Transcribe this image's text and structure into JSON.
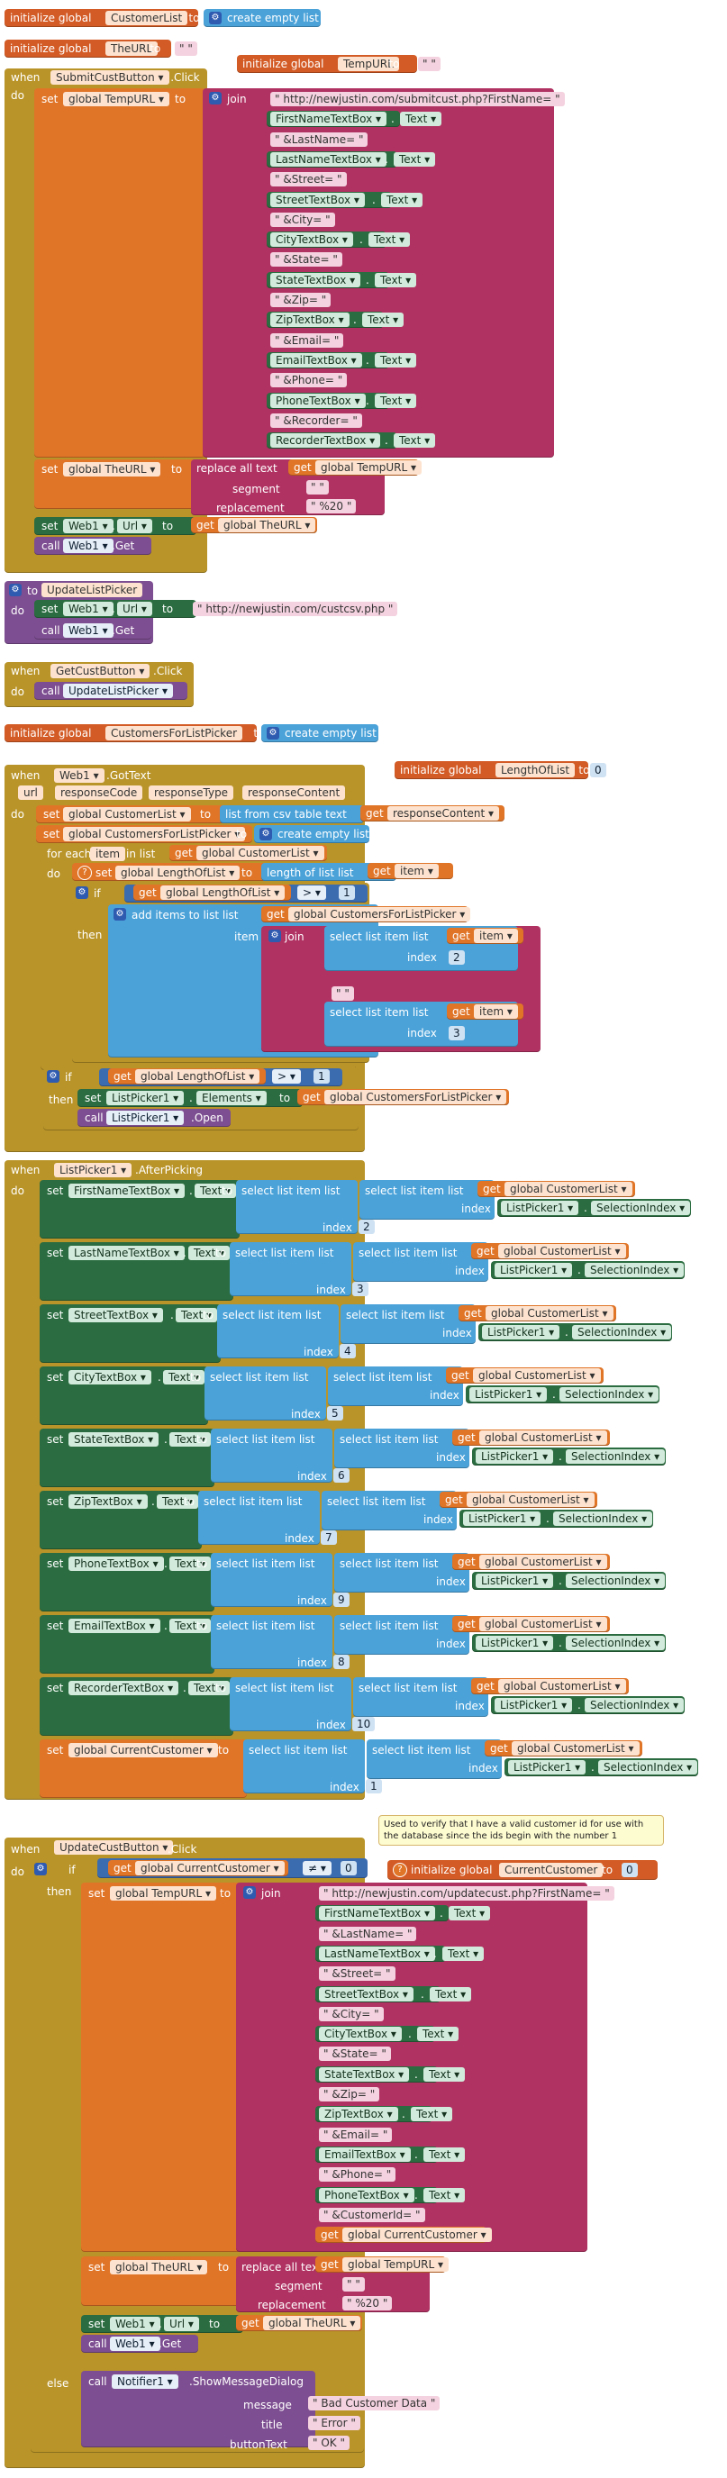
{
  "dropdown_arrow": "▾",
  "gear_glyph": "⚙",
  "question_glyph": "?",
  "empty_string": "\" \"",
  "kw": {
    "initialize_global": "initialize global",
    "to": "to",
    "when": "when",
    "do": "do",
    "set": "set",
    "call": "call",
    "get": "get",
    "join": "join",
    "if": "if",
    "then": "then",
    "else": "else",
    "for_each": "for each",
    "in_list": "in list",
    "item": "item",
    "list": "list",
    "index": "index",
    "text": "text",
    "segment": "segment",
    "replacement": "replacement",
    "replace_all_text": "replace all  text",
    "create_empty_list": "create empty list",
    "list_from_csv_table": "list from csv table  text",
    "length_of_list": "length of list  list",
    "add_items_to_list": "add items to list   list",
    "select_list_item": "select list item  list",
    "url": "url",
    "message": "message",
    "title": "title",
    "buttonText": "buttonText"
  },
  "globals": {
    "customer_list": "CustomerList",
    "the_url": "TheURL",
    "temp_url": "TempURL",
    "customers_for_list_picker": "CustomersForListPicker",
    "length_of_list": "LengthOfList",
    "current_customer": "CurrentCustomer"
  },
  "global_prefix": "global",
  "events": {
    "submit_click": {
      "component": "SubmitCustButton",
      "event": ".Click"
    },
    "get_click": {
      "component": "GetCustButton",
      "event": ".Click"
    },
    "web_got_text": {
      "component": "Web1",
      "event": ".GotText"
    },
    "after_picking": {
      "component": "ListPicker1",
      "event": ".AfterPicking"
    },
    "update_click": {
      "component": "UpdateCustButton",
      "event": ".Click"
    }
  },
  "procedure": {
    "name": "UpdateListPicker"
  },
  "got_text_params": [
    "url",
    "responseCode",
    "responseType",
    "responseContent"
  ],
  "for_each_var": "item",
  "urls": {
    "submit": "http://newjustin.com/submitcust.php?FirstName=",
    "list": "http://newjustin.com/custcsv.php",
    "update": "http://newjustin.com/updatecust.php?FirstName="
  },
  "submit_join_items": [
    {
      "kind": "text",
      "value": "http://newjustin.com/submitcust.php?FirstName="
    },
    {
      "kind": "comp",
      "value": "FirstNameTextBox",
      "prop": "Text"
    },
    {
      "kind": "text",
      "value": "&LastName="
    },
    {
      "kind": "comp",
      "value": "LastNameTextBox",
      "prop": "Text"
    },
    {
      "kind": "text",
      "value": "&Street="
    },
    {
      "kind": "comp",
      "value": "StreetTextBox",
      "prop": "Text"
    },
    {
      "kind": "text",
      "value": "&City="
    },
    {
      "kind": "comp",
      "value": "CityTextBox",
      "prop": "Text"
    },
    {
      "kind": "text",
      "value": "&State="
    },
    {
      "kind": "comp",
      "value": "StateTextBox",
      "prop": "Text"
    },
    {
      "kind": "text",
      "value": "&Zip="
    },
    {
      "kind": "comp",
      "value": "ZipTextBox",
      "prop": "Text"
    },
    {
      "kind": "text",
      "value": "&Email="
    },
    {
      "kind": "comp",
      "value": "EmailTextBox",
      "prop": "Text"
    },
    {
      "kind": "text",
      "value": "&Phone="
    },
    {
      "kind": "comp",
      "value": "PhoneTextBox",
      "prop": "Text"
    },
    {
      "kind": "text",
      "value": "&Recorder="
    },
    {
      "kind": "comp",
      "value": "RecorderTextBox",
      "prop": "Text"
    }
  ],
  "update_join_items": [
    {
      "kind": "text",
      "value": "http://newjustin.com/updatecust.php?FirstName="
    },
    {
      "kind": "comp",
      "value": "FirstNameTextBox",
      "prop": "Text"
    },
    {
      "kind": "text",
      "value": "&LastName="
    },
    {
      "kind": "comp",
      "value": "LastNameTextBox",
      "prop": "Text"
    },
    {
      "kind": "text",
      "value": "&Street="
    },
    {
      "kind": "comp",
      "value": "StreetTextBox",
      "prop": "Text"
    },
    {
      "kind": "text",
      "value": "&City="
    },
    {
      "kind": "comp",
      "value": "CityTextBox",
      "prop": "Text"
    },
    {
      "kind": "text",
      "value": "&State="
    },
    {
      "kind": "comp",
      "value": "StateTextBox",
      "prop": "Text"
    },
    {
      "kind": "text",
      "value": "&Zip="
    },
    {
      "kind": "comp",
      "value": "ZipTextBox",
      "prop": "Text"
    },
    {
      "kind": "text",
      "value": "&Email="
    },
    {
      "kind": "comp",
      "value": "EmailTextBox",
      "prop": "Text"
    },
    {
      "kind": "text",
      "value": "&Phone="
    },
    {
      "kind": "comp",
      "value": "PhoneTextBox",
      "prop": "Text"
    },
    {
      "kind": "text",
      "value": "&CustomerId="
    },
    {
      "kind": "var",
      "value": "global CurrentCustomer"
    }
  ],
  "components": {
    "web": "Web1",
    "url_prop": "Url",
    "get_method": ".Get",
    "open_method": ".Open",
    "list_picker": "ListPicker1",
    "elements_prop": "Elements",
    "selection_index": "SelectionIndex",
    "text_prop": "Text",
    "notifier": "Notifier1",
    "show_message_dialog": ".ShowMessageDialog"
  },
  "after_picking_sets": [
    {
      "component": "FirstNameTextBox",
      "index": "2"
    },
    {
      "component": "LastNameTextBox",
      "index": "3"
    },
    {
      "component": "StreetTextBox",
      "index": "4"
    },
    {
      "component": "CityTextBox",
      "index": "5"
    },
    {
      "component": "StateTextBox",
      "index": "6"
    },
    {
      "component": "ZipTextBox",
      "index": "7"
    },
    {
      "component": "PhoneTextBox",
      "index": "9"
    },
    {
      "component": "EmailTextBox",
      "index": "8"
    },
    {
      "component": "RecorderTextBox",
      "index": "10"
    }
  ],
  "after_picking_current": {
    "variable": "global CurrentCustomer",
    "index": "1"
  },
  "numbers": {
    "zero": "0",
    "one": "1",
    "two": "2",
    "three": "3"
  },
  "operators": {
    "gt": ">",
    "neq": "≠"
  },
  "replace": {
    "segment": "\" \"",
    "replacement": "%20"
  },
  "comment_text": "Used to verify that I have a valid customer id for use with the database since the ids begin with the number 1",
  "notifier": {
    "message": "Bad Customer Data",
    "title": "Error",
    "button": "OK"
  },
  "colors": {
    "variable": "#e07528",
    "list": "#4aa2d9",
    "text": "#b03262",
    "control": "#b99429",
    "component": "#2b6d40",
    "procedure": "#7d4e91",
    "math": "#3c6cb0"
  }
}
